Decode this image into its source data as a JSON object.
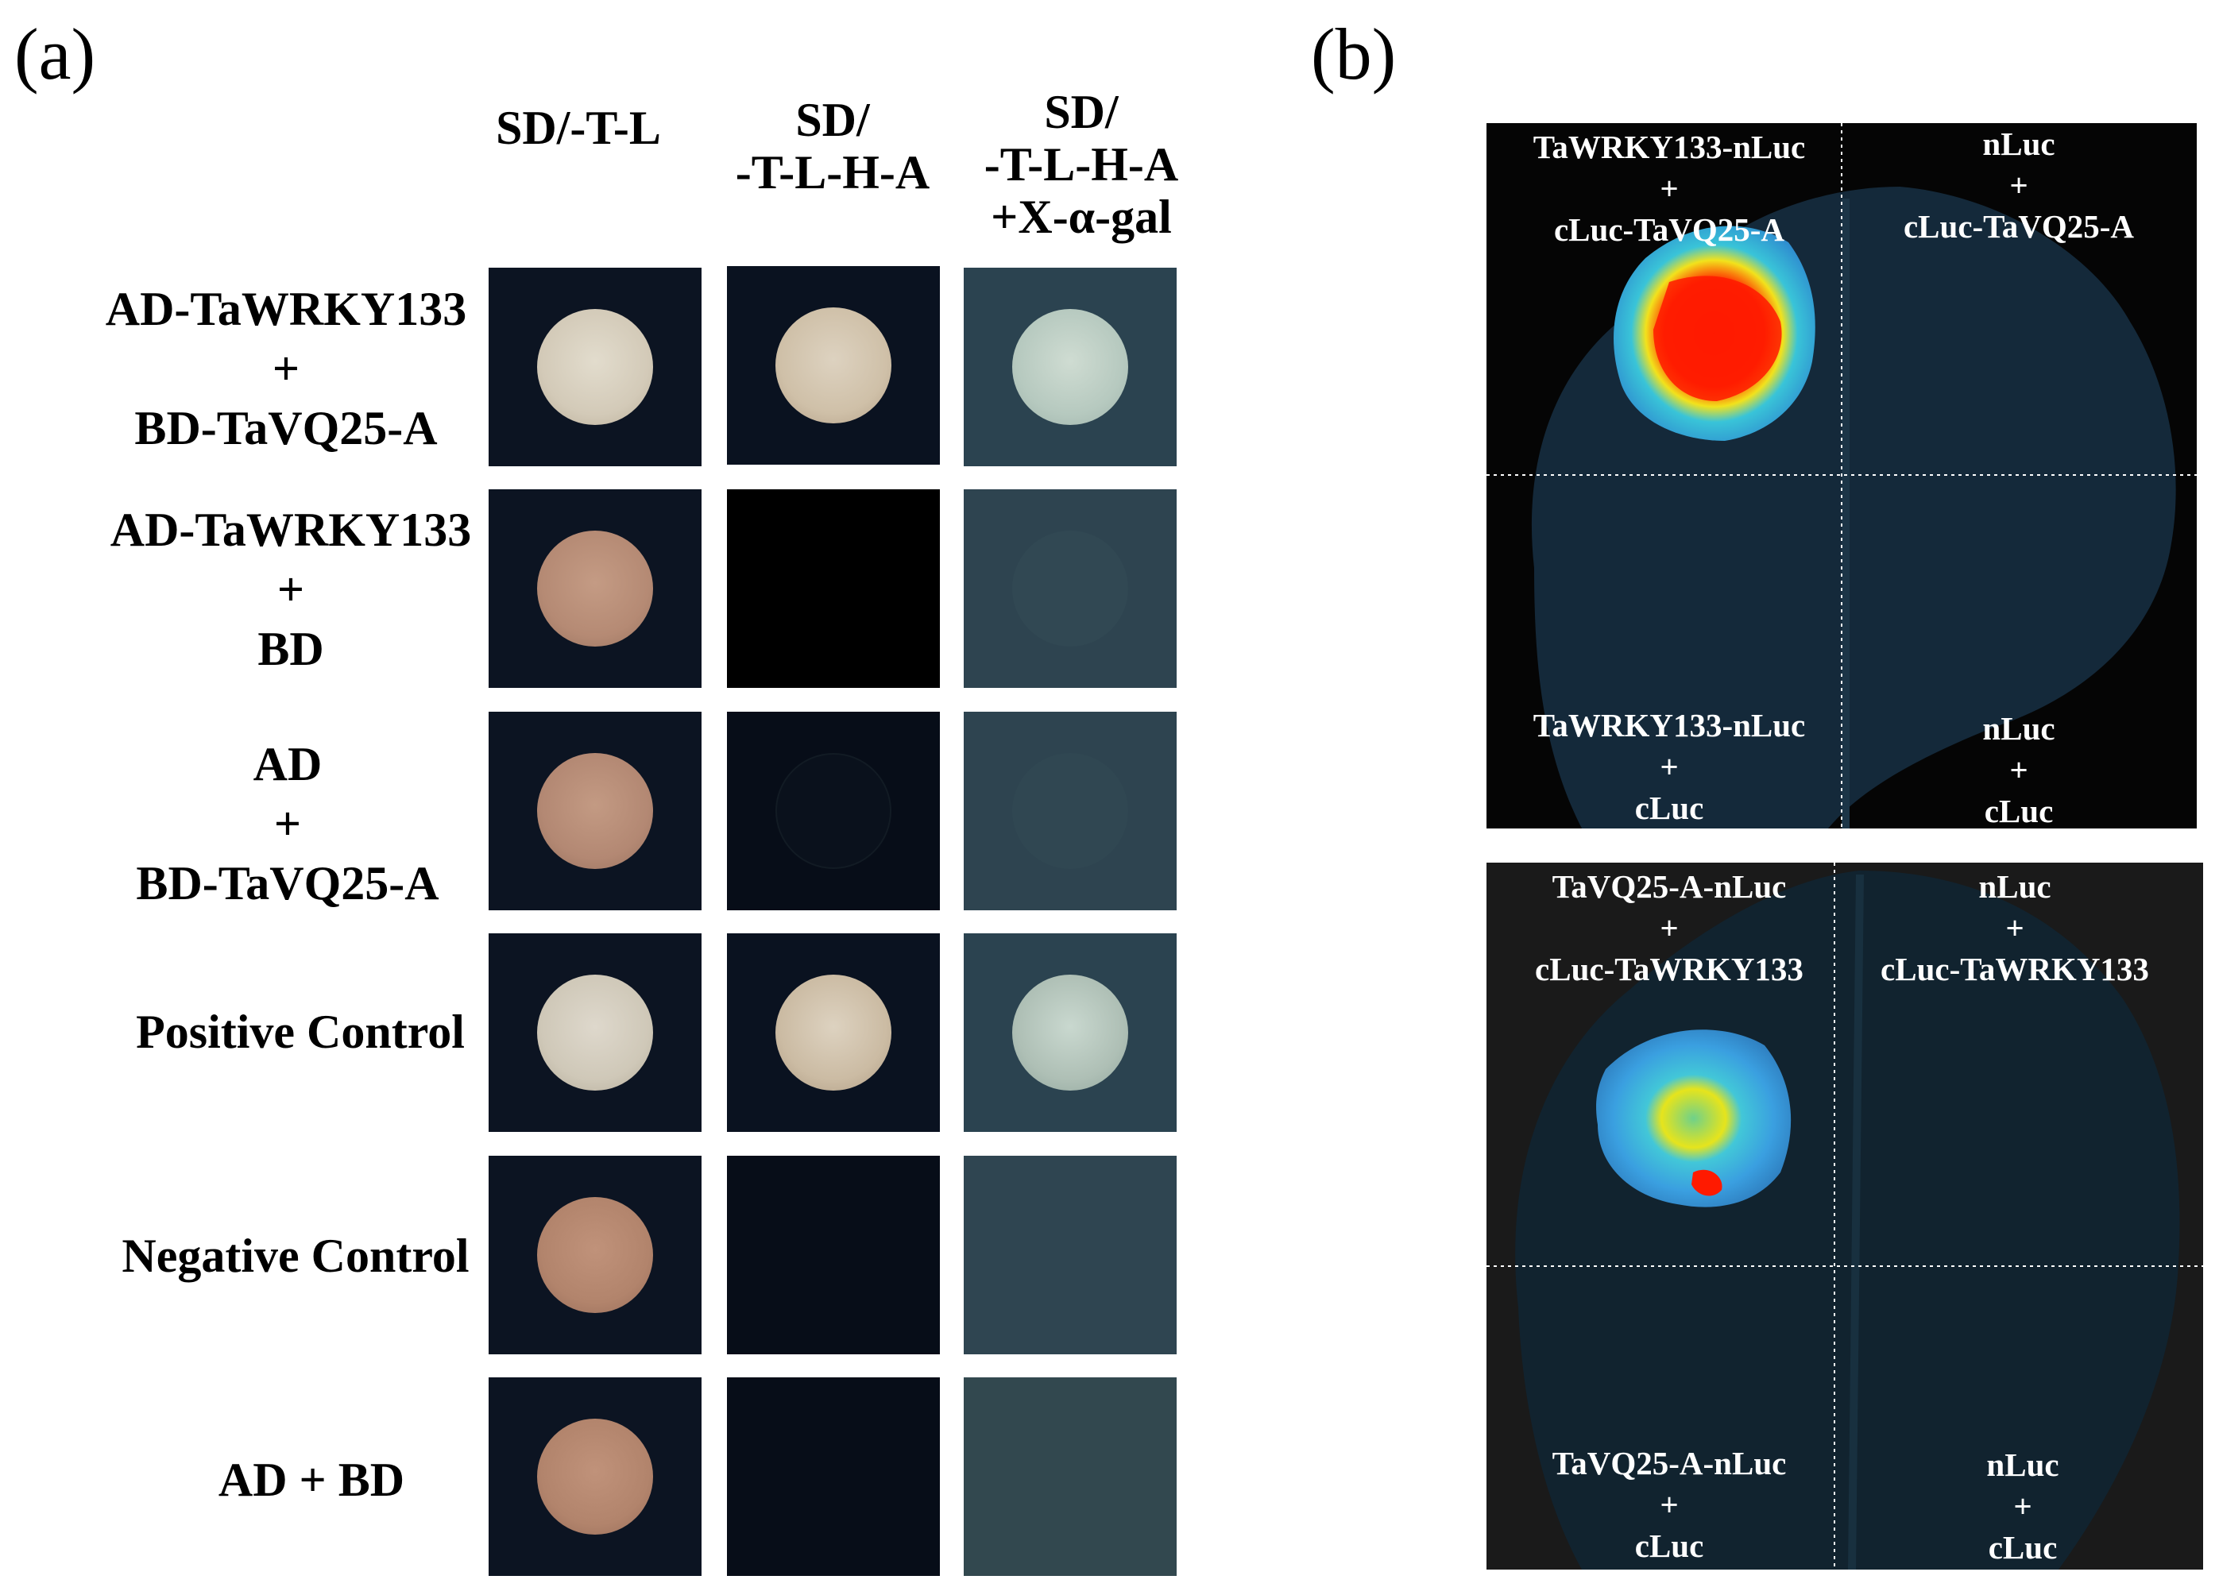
{
  "panel_a": {
    "letter": "(a)",
    "columns": [
      {
        "lines": [
          "SD/-T-L"
        ]
      },
      {
        "lines": [
          "SD/",
          "-T-L-H-A"
        ]
      },
      {
        "lines": [
          "SD/",
          "-T-L-H-A",
          "+X-α-gal"
        ]
      }
    ],
    "rows": [
      {
        "lines": [
          "AD-TaWRKY133",
          "+",
          "BD-TaVQ25-A"
        ],
        "growth": [
          "white",
          "white",
          "blue"
        ]
      },
      {
        "lines": [
          "AD-TaWRKY133",
          "+",
          "BD"
        ],
        "growth": [
          "pink",
          "none",
          "none"
        ]
      },
      {
        "lines": [
          "AD",
          "+",
          "BD-TaVQ25-A"
        ],
        "growth": [
          "pink",
          "none",
          "none"
        ]
      },
      {
        "lines": [
          "Positive Control"
        ],
        "growth": [
          "white",
          "white",
          "blue"
        ]
      },
      {
        "lines": [
          "Negative Control"
        ],
        "growth": [
          "pink",
          "none",
          "none"
        ]
      },
      {
        "lines": [
          "AD + BD"
        ],
        "growth": [
          "pink",
          "none",
          "none"
        ]
      }
    ],
    "colors": {
      "plate_dark": "#0b1320",
      "plate_black": "#000000",
      "plate_xgal": "#2e4450",
      "colony_white": "#d8d2c4",
      "colony_pink": "#b88770",
      "colony_blue": "#b8cbc0"
    }
  },
  "panel_b": {
    "letter": "(b)",
    "images": [
      {
        "quadrants": [
          [
            "TaWRKY133-nLuc",
            "+",
            "cLuc-TaVQ25-A"
          ],
          [
            "nLuc",
            "+",
            "cLuc-TaVQ25-A"
          ],
          [
            "TaWRKY133-nLuc",
            "+",
            "cLuc"
          ],
          [
            "nLuc",
            "+",
            "cLuc"
          ]
        ],
        "signal_quadrant": "top-left",
        "signal_strength": "strong"
      },
      {
        "quadrants": [
          [
            "TaVQ25-A-nLuc",
            "+",
            "cLuc-TaWRKY133"
          ],
          [
            "nLuc",
            "+",
            "cLuc-TaWRKY133"
          ],
          [
            "TaVQ25-A-nLuc",
            "+",
            "cLuc"
          ],
          [
            "nLuc",
            "+",
            "cLuc"
          ]
        ],
        "signal_quadrant": "top-left",
        "signal_strength": "moderate"
      }
    ],
    "colors": {
      "background": "#050505",
      "leaf": "#14293a",
      "signal_low": "#2f8fd0",
      "signal_mid": "#f2e21c",
      "signal_high": "#ff1a00"
    }
  }
}
